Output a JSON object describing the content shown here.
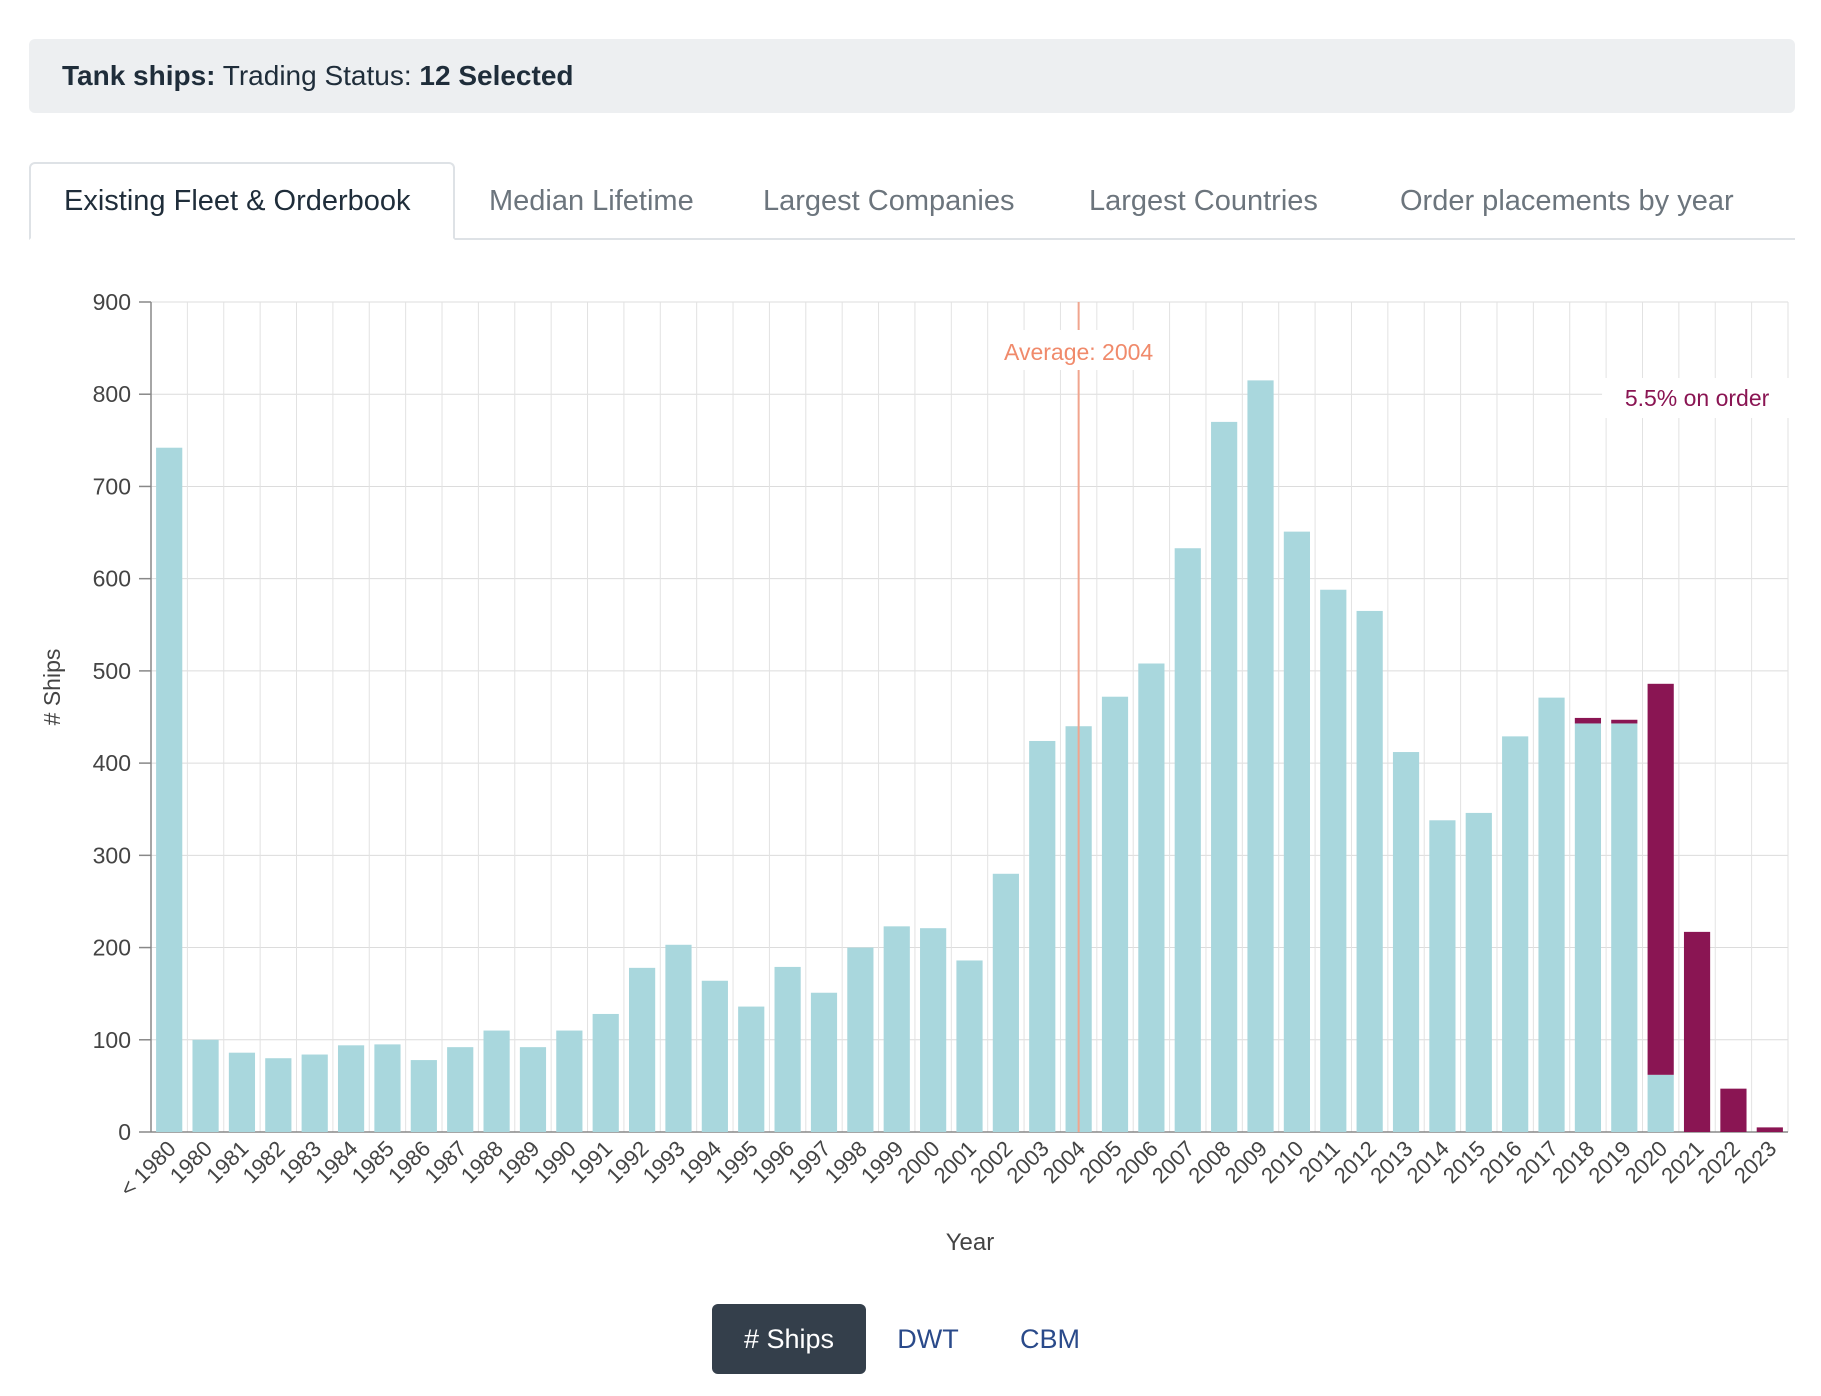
{
  "filter": {
    "prefix": "Tank ships:",
    "label": " Trading Status: ",
    "value": "12 Selected"
  },
  "tabs": [
    {
      "label": "Existing Fleet & Orderbook",
      "active": true
    },
    {
      "label": "Median Lifetime",
      "active": false
    },
    {
      "label": "Largest Companies",
      "active": false
    },
    {
      "label": "Largest Countries",
      "active": false
    },
    {
      "label": "Order placements by year",
      "active": false
    }
  ],
  "toggles": [
    {
      "label": "# Ships",
      "active": true
    },
    {
      "label": "DWT",
      "active": false
    },
    {
      "label": "CBM",
      "active": false
    }
  ],
  "colors": {
    "existing": "#a9d7dd",
    "orderbook": "#8a1553",
    "average_line": "#f0a58e",
    "average_text": "#f08a6b",
    "order_text": "#8a1553"
  },
  "chart_data": {
    "type": "bar",
    "stacked": true,
    "xlabel": "Year",
    "ylabel": "# Ships",
    "ylim": [
      0,
      900
    ],
    "yticks": [
      0,
      100,
      200,
      300,
      400,
      500,
      600,
      700,
      800,
      900
    ],
    "grid": true,
    "categories": [
      "< 1980",
      "1980",
      "1981",
      "1982",
      "1983",
      "1984",
      "1985",
      "1986",
      "1987",
      "1988",
      "1989",
      "1990",
      "1991",
      "1992",
      "1993",
      "1994",
      "1995",
      "1996",
      "1997",
      "1998",
      "1999",
      "2000",
      "2001",
      "2002",
      "2003",
      "2004",
      "2005",
      "2006",
      "2007",
      "2008",
      "2009",
      "2010",
      "2011",
      "2012",
      "2013",
      "2014",
      "2015",
      "2016",
      "2017",
      "2018",
      "2019",
      "2020",
      "2021",
      "2022",
      "2023"
    ],
    "series": [
      {
        "values": [
          742,
          100,
          86,
          80,
          84,
          94,
          95,
          78,
          92,
          110,
          92,
          110,
          128,
          178,
          203,
          164,
          136,
          179,
          151,
          200,
          223,
          221,
          186,
          280,
          424,
          440,
          472,
          508,
          633,
          770,
          815,
          651,
          588,
          565,
          412,
          338,
          346,
          429,
          471,
          443,
          443,
          62,
          0,
          0,
          0
        ]
      },
      {
        "values": [
          0,
          0,
          0,
          0,
          0,
          0,
          0,
          0,
          0,
          0,
          0,
          0,
          0,
          0,
          0,
          0,
          0,
          0,
          0,
          0,
          0,
          0,
          0,
          0,
          0,
          0,
          0,
          0,
          0,
          0,
          0,
          0,
          0,
          0,
          0,
          0,
          0,
          0,
          0,
          6,
          4,
          424,
          217,
          47,
          5
        ]
      }
    ],
    "annotations": {
      "average_label": "Average: 2004",
      "average_category": "2004",
      "order_label": "5.5% on order"
    }
  }
}
